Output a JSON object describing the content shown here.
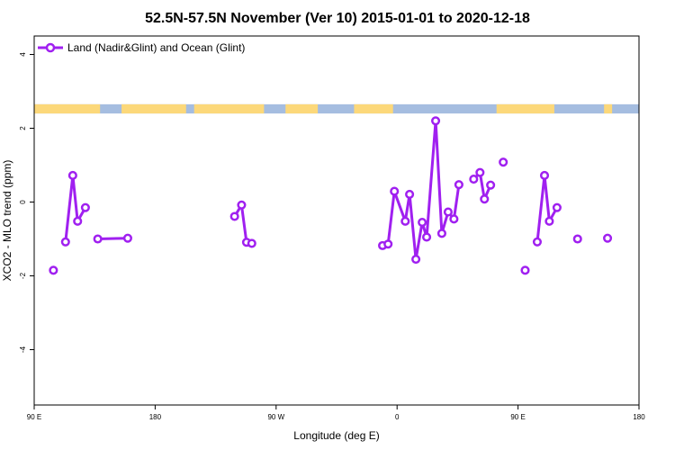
{
  "chart_data": {
    "type": "line",
    "title": "52.5N-57.5N November (Ver 10)   2015-01-01 to 2020-12-18",
    "xlabel": "Longitude (deg E)",
    "ylabel": "XCO2 - MLO trend (ppm)",
    "xlim": [
      90,
      540
    ],
    "ylim": [
      -5.5,
      4.5
    ],
    "x_ticks": [
      {
        "value": 90,
        "label": "90 E"
      },
      {
        "value": 180,
        "label": "180"
      },
      {
        "value": 270,
        "label": "90 W"
      },
      {
        "value": 360,
        "label": "0"
      },
      {
        "value": 450,
        "label": "90 E"
      },
      {
        "value": 540,
        "label": "180"
      }
    ],
    "y_ticks": [
      {
        "value": 4,
        "label": "4"
      },
      {
        "value": 2,
        "label": "2"
      },
      {
        "value": 0,
        "label": "0"
      },
      {
        "value": -2,
        "label": "-2"
      },
      {
        "value": -4,
        "label": "-4"
      }
    ],
    "legend_position": "top-left",
    "grid": false,
    "colors": {
      "series": "#a020f0",
      "land": "#fcd87a",
      "ocean": "#a5bde0"
    },
    "land_ocean_band": {
      "y_range": [
        2.4,
        2.65
      ],
      "land_segments": [
        [
          90,
          139
        ],
        [
          155,
          203
        ],
        [
          209,
          261
        ],
        [
          277,
          301
        ],
        [
          328,
          357
        ],
        [
          434,
          477
        ],
        [
          514,
          520
        ]
      ]
    },
    "series": [
      {
        "name": "Land (Nadir&Glint) and Ocean (Glint)",
        "segments": [
          [
            [
              104.3,
              -1.85
            ]
          ],
          [
            [
              113.3,
              -1.08
            ],
            [
              118.7,
              0.72
            ],
            [
              122.3,
              -0.52
            ],
            [
              128.1,
              -0.15
            ]
          ],
          [
            [
              137.3,
              -1.0
            ],
            [
              159.6,
              -0.98
            ]
          ],
          [
            [
              239.1,
              -0.39
            ],
            [
              244.3,
              -0.08
            ],
            [
              248.0,
              -1.09
            ],
            [
              251.9,
              -1.12
            ]
          ],
          [
            [
              349.2,
              -1.18
            ],
            [
              353.3,
              -1.14
            ],
            [
              358.0,
              0.29
            ],
            [
              366.1,
              -0.52
            ],
            [
              369.3,
              0.21
            ],
            [
              374.0,
              -1.55
            ],
            [
              378.7,
              -0.55
            ],
            [
              382.0,
              -0.95
            ],
            [
              388.7,
              2.2
            ],
            [
              393.3,
              -0.85
            ],
            [
              398.0,
              -0.27
            ],
            [
              402.3,
              -0.46
            ],
            [
              406.0,
              0.47
            ]
          ],
          [
            [
              417.0,
              0.62
            ],
            [
              421.7,
              0.8
            ],
            [
              425.0,
              0.08
            ],
            [
              429.6,
              0.46
            ]
          ],
          [
            [
              439.0,
              1.08
            ]
          ],
          [
            [
              455.3,
              -1.85
            ]
          ],
          [
            [
              464.3,
              -1.08
            ],
            [
              469.7,
              0.72
            ],
            [
              473.3,
              -0.52
            ],
            [
              479.0,
              -0.15
            ]
          ],
          [
            [
              494.3,
              -1.0
            ]
          ],
          [
            [
              516.6,
              -0.98
            ]
          ]
        ]
      }
    ]
  }
}
